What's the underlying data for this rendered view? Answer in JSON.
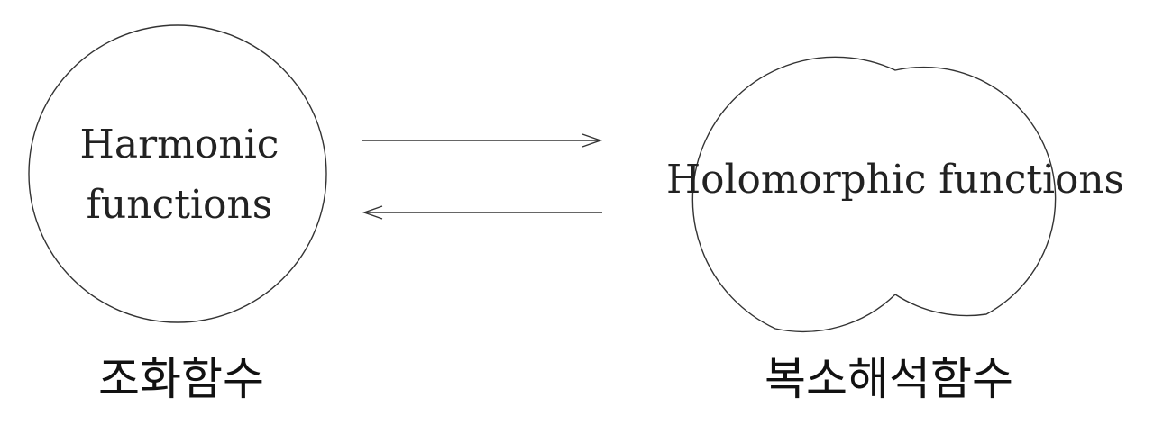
{
  "left_node": {
    "line1": "Harmonic",
    "line2": "functions",
    "caption": "조화함수"
  },
  "right_node": {
    "label": "Holomorphic functions",
    "caption": "복소해석함수"
  }
}
